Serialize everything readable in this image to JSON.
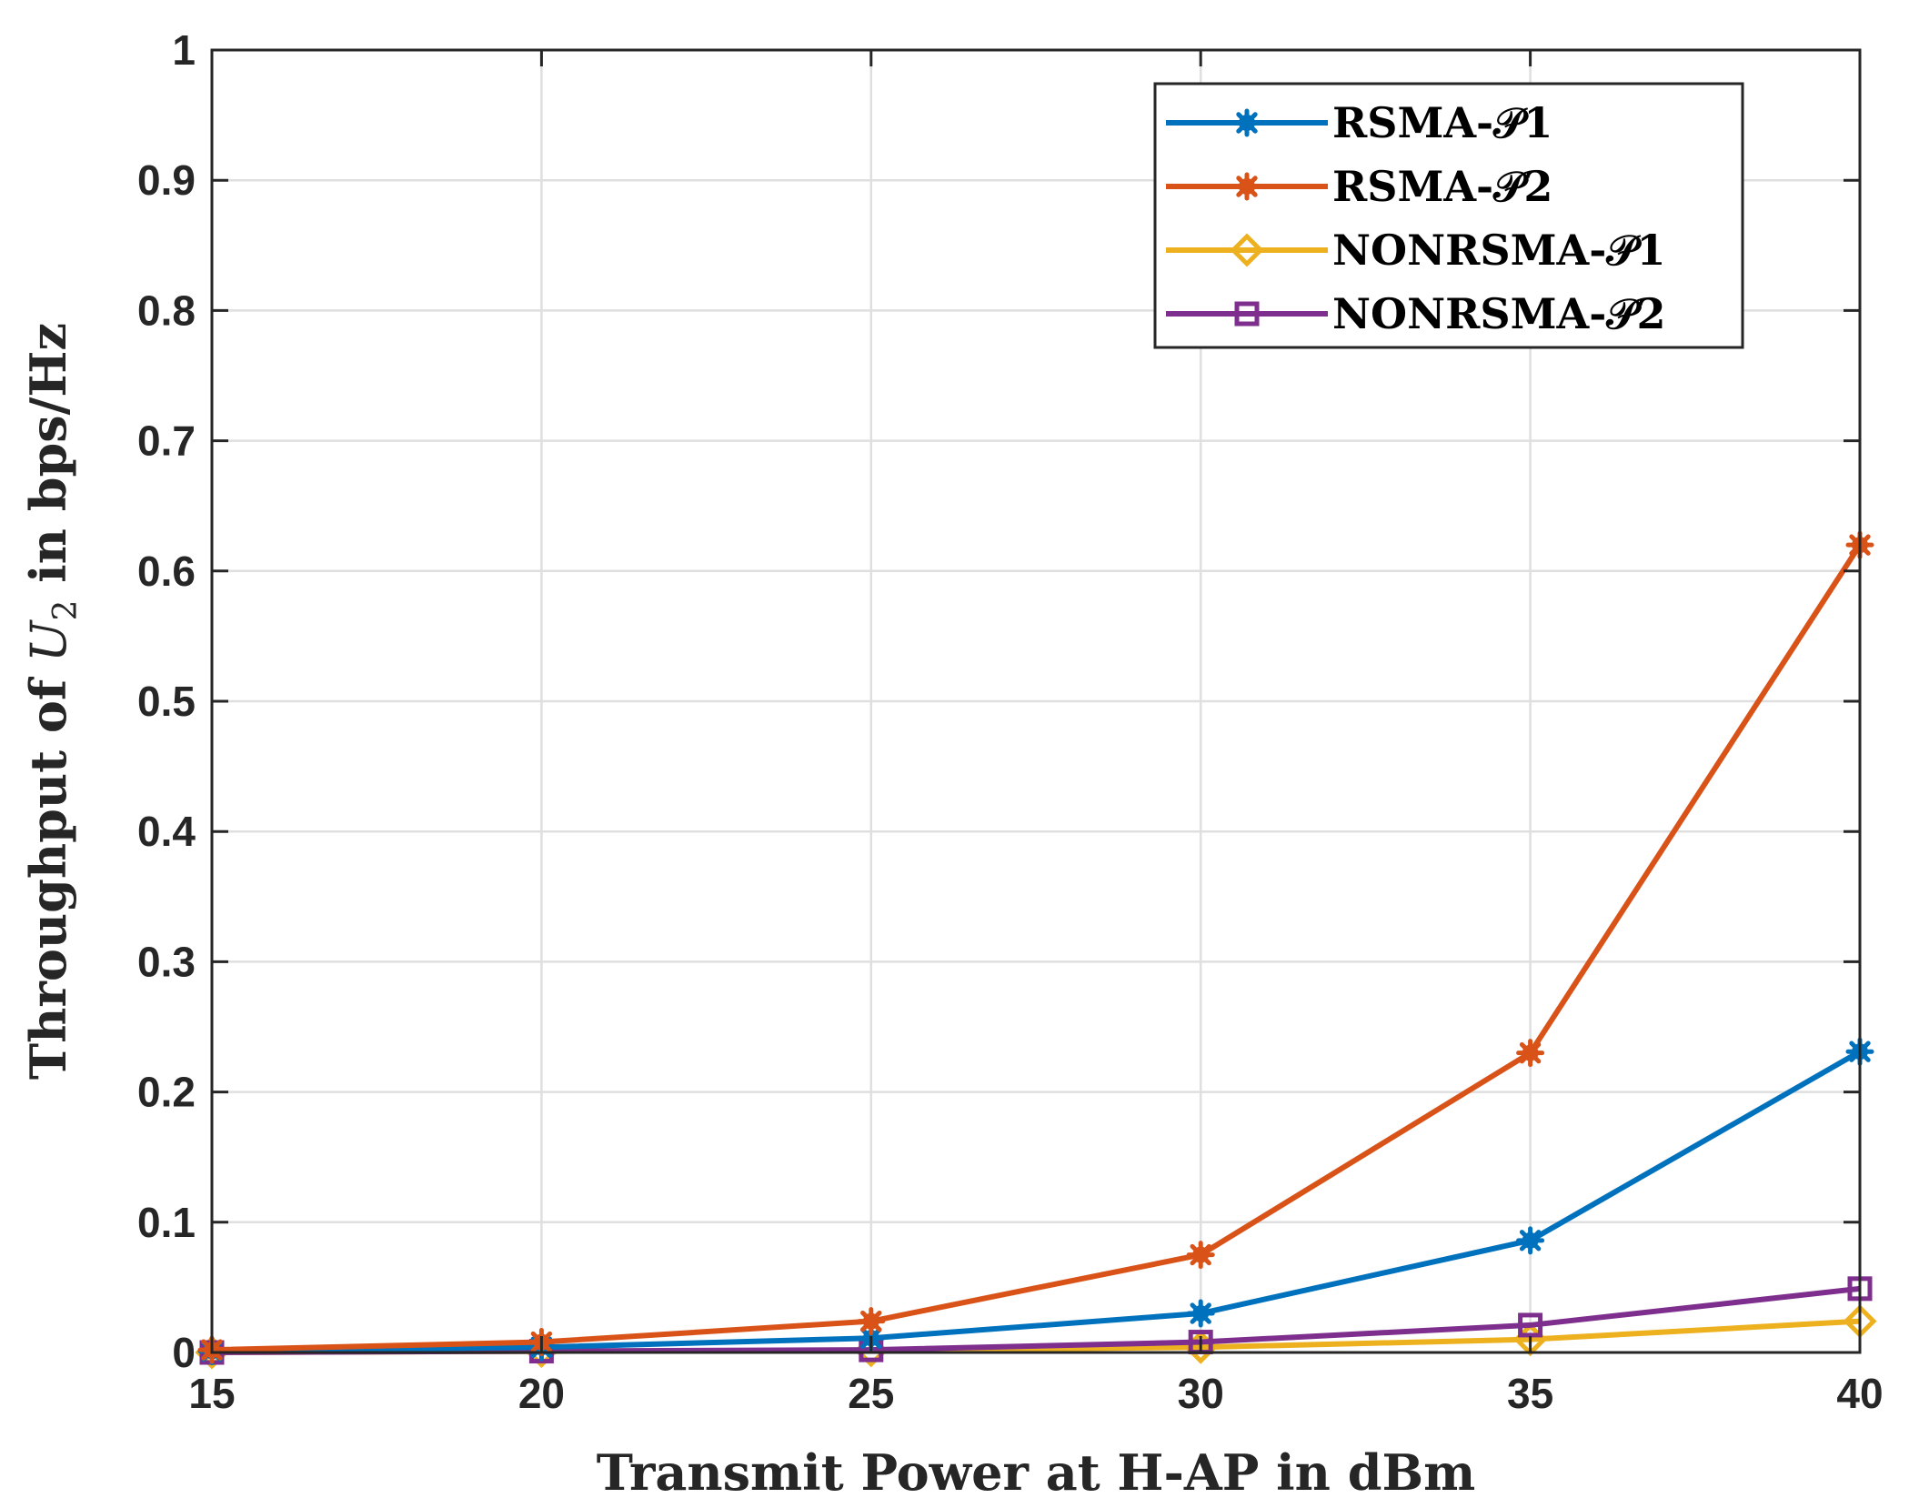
{
  "chart_data": {
    "type": "line",
    "xlabel": "Transmit Power at H-AP in dBm",
    "ylabel": "Throughput of U2 in bps/Hz",
    "ylabel_parts": {
      "before": "Throughput of ",
      "var": "U",
      "sub": "2",
      "after": " in bps/Hz"
    },
    "x": [
      15,
      20,
      25,
      30,
      35,
      40
    ],
    "xlim": [
      15,
      40
    ],
    "ylim": [
      0,
      1
    ],
    "xticks": [
      "15",
      "20",
      "25",
      "30",
      "35",
      "40"
    ],
    "yticks": [
      "0",
      "0.1",
      "0.2",
      "0.3",
      "0.4",
      "0.5",
      "0.6",
      "0.7",
      "0.8",
      "0.9",
      "1"
    ],
    "grid": true,
    "legend_position": "top-right",
    "series": [
      {
        "name": "RSMA-𝒫1",
        "color": "#0072BD",
        "marker": "asterisk",
        "values": [
          0.001,
          0.004,
          0.011,
          0.03,
          0.086,
          0.231
        ]
      },
      {
        "name": "RSMA-𝒫2",
        "color": "#D95319",
        "marker": "asterisk",
        "values": [
          0.002,
          0.008,
          0.024,
          0.075,
          0.23,
          0.62
        ]
      },
      {
        "name": "NONRSMA-𝒫1",
        "color": "#EDB120",
        "marker": "diamond",
        "values": [
          0.0,
          0.001,
          0.0015,
          0.004,
          0.01,
          0.024
        ]
      },
      {
        "name": "NONRSMA-𝒫2",
        "color": "#7E2F8E",
        "marker": "square",
        "values": [
          0.0,
          0.001,
          0.002,
          0.008,
          0.021,
          0.049
        ]
      }
    ]
  }
}
